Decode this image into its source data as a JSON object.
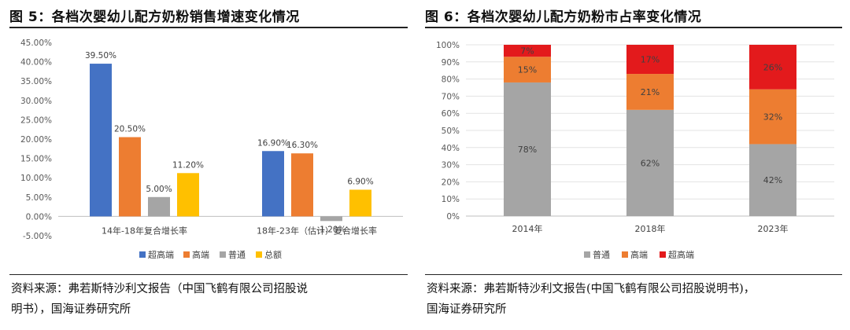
{
  "figures": [
    {
      "title": "图 5：各档次婴幼儿配方奶粉销售增速变化情况",
      "source": "资料来源：弗若斯特沙利文报告（中国飞鹤有限公司招股说明书），国海证券研究所",
      "source_line1": "资料来源：弗若斯特沙利文报告（中国飞鹤有限公司招股说",
      "source_line2": "明书），国海证券研究所"
    },
    {
      "title": "图 6：各档次婴幼儿配方奶粉市占率变化情况",
      "source": "资料来源：弗若斯特沙利文报告(中国飞鹤有限公司招股说明书)，国海证券研究所",
      "source_line1": "资料来源：弗若斯特沙利文报告(中国飞鹤有限公司招股说明书)，",
      "source_line2": "国海证券研究所"
    }
  ],
  "chart_data": [
    {
      "type": "bar",
      "categories": [
        "14年-18年复合增长率",
        "18年-23年（估计）复合增长率"
      ],
      "series": [
        {
          "name": "超高端",
          "color": "#4472C4",
          "values": [
            39.5,
            16.9
          ],
          "labels": [
            "39.50%",
            "16.90%"
          ]
        },
        {
          "name": "高端",
          "color": "#ED7D31",
          "values": [
            20.5,
            16.3
          ],
          "labels": [
            "20.50%",
            "16.30%"
          ]
        },
        {
          "name": "普通",
          "color": "#A5A5A5",
          "values": [
            5.0,
            -1.2
          ],
          "labels": [
            "5.00%",
            "-1.20%"
          ]
        },
        {
          "name": "总额",
          "color": "#FFC000",
          "values": [
            11.2,
            6.9
          ],
          "labels": [
            "11.20%",
            "6.90%"
          ]
        }
      ],
      "ylim": [
        -5,
        45
      ],
      "yticks": [
        "-5.00%",
        "0.00%",
        "5.00%",
        "10.00%",
        "15.00%",
        "20.00%",
        "25.00%",
        "30.00%",
        "35.00%",
        "40.00%",
        "45.00%"
      ],
      "legend_position": "bottom",
      "grid": false
    },
    {
      "type": "bar",
      "stacked": true,
      "categories": [
        "2014年",
        "2018年",
        "2023年"
      ],
      "series": [
        {
          "name": "普通",
          "color": "#A5A5A5",
          "values": [
            78,
            62,
            42
          ],
          "labels": [
            "78%",
            "62%",
            "42%"
          ]
        },
        {
          "name": "高端",
          "color": "#ED7D31",
          "values": [
            15,
            21,
            32
          ],
          "labels": [
            "15%",
            "21%",
            "32%"
          ]
        },
        {
          "name": "超高端",
          "color": "#E31A1C",
          "values": [
            7,
            17,
            26
          ],
          "labels": [
            "7%",
            "17%",
            "26%"
          ]
        }
      ],
      "ylim": [
        0,
        100
      ],
      "yticks": [
        "0%",
        "10%",
        "20%",
        "30%",
        "40%",
        "50%",
        "60%",
        "70%",
        "80%",
        "90%",
        "100%"
      ],
      "legend_position": "bottom",
      "grid": true
    }
  ]
}
